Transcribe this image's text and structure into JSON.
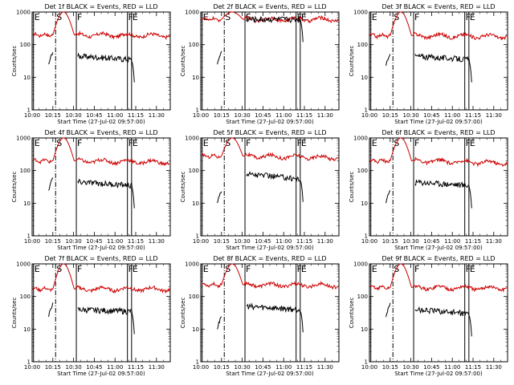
{
  "colors": {
    "events": "#000000",
    "lld": "#cc0000",
    "axis": "#000000"
  },
  "chart_data": [
    {
      "type": "line",
      "title": "Det 1f BLACK = Events, RED = LLD",
      "xlabel": "Start Time (27-Jul-02 09:57:00)",
      "ylabel": "Counts/sec",
      "xlim": [
        600,
        700
      ],
      "ylim": [
        1,
        1000
      ],
      "yscale": "log",
      "x_ticks": [
        600,
        615,
        630,
        645,
        660,
        675,
        690
      ],
      "x_tick_labels": [
        "10:00",
        "10:15",
        "10:30",
        "10:45",
        "11:00",
        "11:15",
        "11:30"
      ],
      "y_ticks": [
        1,
        10,
        100,
        1000
      ],
      "y_tick_labels": [
        "1",
        "10",
        "100",
        "1000"
      ],
      "markers": [
        {
          "label": "E",
          "time": 601,
          "style": "solid"
        },
        {
          "label": "S",
          "time": 617,
          "style": "dashdot"
        },
        {
          "label": "F",
          "time": 632,
          "style": "solid"
        },
        {
          "label": "F",
          "time": 669,
          "style": "solid"
        },
        {
          "label": "E",
          "time": 672,
          "style": "solid"
        }
      ],
      "series": [
        {
          "name": "LLD",
          "color": "red",
          "level_start": 200,
          "level_end": 190,
          "flare_peak": 1000
        },
        {
          "name": "Events",
          "color": "black",
          "level_start": 45,
          "level_end": 35,
          "pre_flare_level": 60
        }
      ]
    },
    {
      "type": "line",
      "title": "Det 2f BLACK = Events, RED = LLD",
      "xlabel": "Start Time (27-Jul-02 09:57:00)",
      "ylabel": "Counts/sec",
      "xlim": [
        600,
        700
      ],
      "ylim": [
        1,
        1000
      ],
      "yscale": "log",
      "x_ticks": [
        600,
        615,
        630,
        645,
        660,
        675,
        690
      ],
      "x_tick_labels": [
        "10:00",
        "10:15",
        "10:30",
        "10:45",
        "11:00",
        "11:15",
        "11:30"
      ],
      "y_ticks": [
        1,
        10,
        100,
        1000
      ],
      "y_tick_labels": [
        "1",
        "10",
        "100",
        "1000"
      ],
      "markers": [
        {
          "label": "E",
          "time": 601,
          "style": "solid"
        },
        {
          "label": "S",
          "time": 617,
          "style": "dashdot"
        },
        {
          "label": "F",
          "time": 632,
          "style": "solid"
        },
        {
          "label": "F",
          "time": 669,
          "style": "solid"
        },
        {
          "label": "E",
          "time": 672,
          "style": "solid"
        }
      ],
      "series": [
        {
          "name": "LLD",
          "color": "red",
          "level_start": 600,
          "level_end": 600,
          "flare_peak": 1000
        },
        {
          "name": "Events",
          "color": "black",
          "level_start": 600,
          "level_end": 600,
          "pre_flare_level": 60
        }
      ]
    },
    {
      "type": "line",
      "title": "Det 3f BLACK = Events, RED = LLD",
      "xlabel": "Start Time (27-Jul-02 09:57:00)",
      "ylabel": "Counts/sec",
      "xlim": [
        600,
        700
      ],
      "ylim": [
        1,
        1000
      ],
      "yscale": "log",
      "x_ticks": [
        600,
        615,
        630,
        645,
        660,
        675,
        690
      ],
      "x_tick_labels": [
        "10:00",
        "10:15",
        "10:30",
        "10:45",
        "11:00",
        "11:15",
        "11:30"
      ],
      "y_ticks": [
        1,
        10,
        100,
        1000
      ],
      "y_tick_labels": [
        "1",
        "10",
        "100",
        "1000"
      ],
      "markers": [
        {
          "label": "E",
          "time": 601,
          "style": "solid"
        },
        {
          "label": "S",
          "time": 617,
          "style": "dashdot"
        },
        {
          "label": "F",
          "time": 632,
          "style": "solid"
        },
        {
          "label": "F",
          "time": 669,
          "style": "solid"
        },
        {
          "label": "E",
          "time": 672,
          "style": "solid"
        }
      ],
      "series": [
        {
          "name": "LLD",
          "color": "red",
          "level_start": 190,
          "level_end": 180,
          "flare_peak": 1000
        },
        {
          "name": "Events",
          "color": "black",
          "level_start": 45,
          "level_end": 35,
          "pre_flare_level": 55
        }
      ]
    },
    {
      "type": "line",
      "title": "Det 4f BLACK = Events, RED = LLD",
      "xlabel": "Start Time (27-Jul-02 09:57:00)",
      "ylabel": "Counts/sec",
      "xlim": [
        600,
        700
      ],
      "ylim": [
        1,
        1000
      ],
      "yscale": "log",
      "x_ticks": [
        600,
        615,
        630,
        645,
        660,
        675,
        690
      ],
      "x_tick_labels": [
        "10:00",
        "10:15",
        "10:30",
        "10:45",
        "11:00",
        "11:15",
        "11:30"
      ],
      "y_ticks": [
        1,
        10,
        100,
        1000
      ],
      "y_tick_labels": [
        "1",
        "10",
        "100",
        "1000"
      ],
      "markers": [
        {
          "label": "E",
          "time": 601,
          "style": "solid"
        },
        {
          "label": "S",
          "time": 617,
          "style": "dashdot"
        },
        {
          "label": "F",
          "time": 632,
          "style": "solid"
        },
        {
          "label": "F",
          "time": 669,
          "style": "solid"
        },
        {
          "label": "E",
          "time": 672,
          "style": "solid"
        }
      ],
      "series": [
        {
          "name": "LLD",
          "color": "red",
          "level_start": 200,
          "level_end": 180,
          "flare_peak": 1000
        },
        {
          "name": "Events",
          "color": "black",
          "level_start": 45,
          "level_end": 35,
          "pre_flare_level": 60
        }
      ]
    },
    {
      "type": "line",
      "title": "Det 5f BLACK = Events, RED = LLD",
      "xlabel": "Start Time (27-Jul-02 09:57:00)",
      "ylabel": "Counts/sec",
      "xlim": [
        600,
        700
      ],
      "ylim": [
        1,
        1000
      ],
      "yscale": "log",
      "x_ticks": [
        600,
        615,
        630,
        645,
        660,
        675,
        690
      ],
      "x_tick_labels": [
        "10:00",
        "10:15",
        "10:30",
        "10:45",
        "11:00",
        "11:15",
        "11:30"
      ],
      "y_ticks": [
        1,
        10,
        100,
        1000
      ],
      "y_tick_labels": [
        "1",
        "10",
        "100",
        "1000"
      ],
      "markers": [
        {
          "label": "E",
          "time": 601,
          "style": "solid"
        },
        {
          "label": "S",
          "time": 617,
          "style": "dashdot"
        },
        {
          "label": "F",
          "time": 632,
          "style": "solid"
        },
        {
          "label": "F",
          "time": 669,
          "style": "solid"
        },
        {
          "label": "E",
          "time": 672,
          "style": "solid"
        }
      ],
      "series": [
        {
          "name": "LLD",
          "color": "red",
          "level_start": 280,
          "level_end": 250,
          "flare_peak": 1000
        },
        {
          "name": "Events",
          "color": "black",
          "level_start": 80,
          "level_end": 55,
          "pre_flare_level": 25
        }
      ]
    },
    {
      "type": "line",
      "title": "Det 6f BLACK = Events, RED = LLD",
      "xlabel": "Start Time (27-Jul-02 09:57:00)",
      "ylabel": "Counts/sec",
      "xlim": [
        600,
        700
      ],
      "ylim": [
        1,
        1000
      ],
      "yscale": "log",
      "x_ticks": [
        600,
        615,
        630,
        645,
        660,
        675,
        690
      ],
      "x_tick_labels": [
        "10:00",
        "10:15",
        "10:30",
        "10:45",
        "11:00",
        "11:15",
        "11:30"
      ],
      "y_ticks": [
        1,
        10,
        100,
        1000
      ],
      "y_tick_labels": [
        "1",
        "10",
        "100",
        "1000"
      ],
      "markers": [
        {
          "label": "E",
          "time": 601,
          "style": "solid"
        },
        {
          "label": "S",
          "time": 617,
          "style": "dashdot"
        },
        {
          "label": "F",
          "time": 632,
          "style": "solid"
        },
        {
          "label": "F",
          "time": 669,
          "style": "solid"
        },
        {
          "label": "E",
          "time": 672,
          "style": "solid"
        }
      ],
      "series": [
        {
          "name": "LLD",
          "color": "red",
          "level_start": 200,
          "level_end": 170,
          "flare_peak": 1000
        },
        {
          "name": "Events",
          "color": "black",
          "level_start": 45,
          "level_end": 35,
          "pre_flare_level": 25
        }
      ]
    },
    {
      "type": "line",
      "title": "Det 7f BLACK = Events, RED = LLD",
      "xlabel": "Start Time (27-Jul-02 09:57:00)",
      "ylabel": "Counts/sec",
      "xlim": [
        600,
        700
      ],
      "ylim": [
        1,
        1000
      ],
      "yscale": "log",
      "x_ticks": [
        600,
        615,
        630,
        645,
        660,
        675,
        690
      ],
      "x_tick_labels": [
        "10:00",
        "10:15",
        "10:30",
        "10:45",
        "11:00",
        "11:15",
        "11:30"
      ],
      "y_ticks": [
        1,
        10,
        100,
        1000
      ],
      "y_tick_labels": [
        "1",
        "10",
        "100",
        "1000"
      ],
      "markers": [
        {
          "label": "E",
          "time": 601,
          "style": "solid"
        },
        {
          "label": "S",
          "time": 617,
          "style": "dashdot"
        },
        {
          "label": "F",
          "time": 632,
          "style": "solid"
        },
        {
          "label": "F",
          "time": 669,
          "style": "solid"
        },
        {
          "label": "E",
          "time": 672,
          "style": "solid"
        }
      ],
      "series": [
        {
          "name": "LLD",
          "color": "red",
          "level_start": 170,
          "level_end": 170,
          "flare_peak": 1000
        },
        {
          "name": "Events",
          "color": "black",
          "level_start": 40,
          "level_end": 35,
          "pre_flare_level": 60
        }
      ]
    },
    {
      "type": "line",
      "title": "Det 8f BLACK = Events, RED = LLD",
      "xlabel": "Start Time (27-Jul-02 09:57:00)",
      "ylabel": "Counts/sec",
      "xlim": [
        600,
        700
      ],
      "ylim": [
        1,
        1000
      ],
      "yscale": "log",
      "x_ticks": [
        600,
        615,
        630,
        645,
        660,
        675,
        690
      ],
      "x_tick_labels": [
        "10:00",
        "10:15",
        "10:30",
        "10:45",
        "11:00",
        "11:15",
        "11:30"
      ],
      "y_ticks": [
        1,
        10,
        100,
        1000
      ],
      "y_tick_labels": [
        "1",
        "10",
        "100",
        "1000"
      ],
      "markers": [
        {
          "label": "E",
          "time": 601,
          "style": "solid"
        },
        {
          "label": "S",
          "time": 617,
          "style": "dashdot"
        },
        {
          "label": "F",
          "time": 632,
          "style": "solid"
        },
        {
          "label": "F",
          "time": 669,
          "style": "solid"
        },
        {
          "label": "E",
          "time": 672,
          "style": "solid"
        }
      ],
      "series": [
        {
          "name": "LLD",
          "color": "red",
          "level_start": 230,
          "level_end": 220,
          "flare_peak": 1000
        },
        {
          "name": "Events",
          "color": "black",
          "level_start": 50,
          "level_end": 40,
          "pre_flare_level": 25
        }
      ]
    },
    {
      "type": "line",
      "title": "Det 9f BLACK = Events, RED = LLD",
      "xlabel": "Start Time (27-Jul-02 09:57:00)",
      "ylabel": "Counts/sec",
      "xlim": [
        600,
        700
      ],
      "ylim": [
        1,
        1000
      ],
      "yscale": "log",
      "x_ticks": [
        600,
        615,
        630,
        645,
        660,
        675,
        690
      ],
      "x_tick_labels": [
        "10:00",
        "10:15",
        "10:30",
        "10:45",
        "11:00",
        "11:15",
        "11:30"
      ],
      "y_ticks": [
        1,
        10,
        100,
        1000
      ],
      "y_tick_labels": [
        "1",
        "10",
        "100",
        "1000"
      ],
      "markers": [
        {
          "label": "E",
          "time": 601,
          "style": "solid"
        },
        {
          "label": "S",
          "time": 617,
          "style": "dashdot"
        },
        {
          "label": "F",
          "time": 632,
          "style": "solid"
        },
        {
          "label": "F",
          "time": 669,
          "style": "solid"
        },
        {
          "label": "E",
          "time": 672,
          "style": "solid"
        }
      ],
      "series": [
        {
          "name": "LLD",
          "color": "red",
          "level_start": 190,
          "level_end": 180,
          "flare_peak": 1000
        },
        {
          "name": "Events",
          "color": "black",
          "level_start": 40,
          "level_end": 30,
          "pre_flare_level": 60
        }
      ]
    }
  ]
}
